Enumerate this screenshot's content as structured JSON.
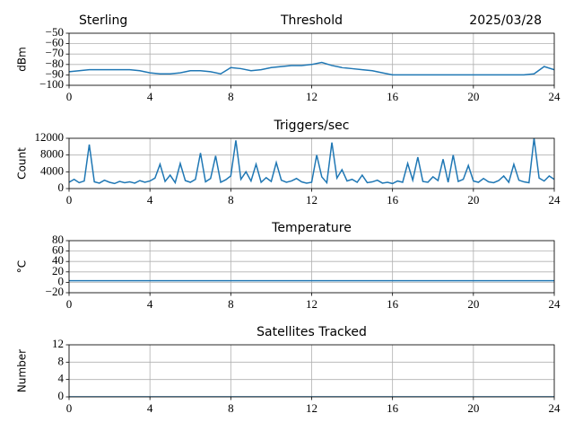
{
  "chart_data": [
    {
      "type": "line",
      "location": "Sterling",
      "title": "Threshold",
      "date": "2025/03/28",
      "ylabel": "dBm",
      "color": "#1f77b4",
      "grid": true,
      "xlim": [
        0,
        24
      ],
      "xticks": [
        0,
        4,
        8,
        12,
        16,
        20,
        24
      ],
      "ylim": [
        -100,
        -50
      ],
      "yticks": [
        {
          "value": -100,
          "label": "−100"
        },
        {
          "value": -90,
          "label": "−90"
        },
        {
          "value": -80,
          "label": "−80"
        },
        {
          "value": -70,
          "label": "−70"
        },
        {
          "value": -60,
          "label": "−60"
        },
        {
          "value": -50,
          "label": "−50"
        }
      ],
      "x": [
        0,
        0.5,
        1,
        1.5,
        2,
        2.5,
        3,
        3.5,
        4,
        4.5,
        5,
        5.5,
        6,
        6.5,
        7,
        7.5,
        8,
        8.5,
        9,
        9.5,
        10,
        10.5,
        11,
        11.5,
        12,
        12.5,
        13,
        13.5,
        14,
        14.5,
        15,
        15.5,
        16,
        16.5,
        17,
        17.5,
        18,
        18.5,
        19,
        19.5,
        20,
        20.5,
        21,
        21.5,
        22,
        22.5,
        23,
        23.5,
        24
      ],
      "values": [
        -87,
        -86,
        -85,
        -85,
        -85,
        -85,
        -85,
        -86,
        -88,
        -89,
        -89,
        -88,
        -86,
        -86,
        -87,
        -89,
        -83,
        -84,
        -86,
        -85,
        -83,
        -82,
        -81,
        -81,
        -80,
        -78,
        -81,
        -83,
        -84,
        -85,
        -86,
        -88,
        -90,
        -90,
        -90,
        -90,
        -90,
        -90,
        -90,
        -90,
        -90,
        -90,
        -90,
        -90,
        -90,
        -90,
        -89,
        -82,
        -85
      ]
    },
    {
      "type": "line",
      "title": "Triggers/sec",
      "ylabel": "Count",
      "color": "#1f77b4",
      "grid": true,
      "xlim": [
        0,
        24
      ],
      "xticks": [
        0,
        4,
        8,
        12,
        16,
        20,
        24
      ],
      "ylim": [
        0,
        12000
      ],
      "yticks": [
        0,
        4000,
        8000,
        12000
      ],
      "x": [
        0,
        0.25,
        0.5,
        0.75,
        1,
        1.25,
        1.5,
        1.75,
        2,
        2.25,
        2.5,
        2.75,
        3,
        3.25,
        3.5,
        3.75,
        4,
        4.25,
        4.5,
        4.75,
        5,
        5.25,
        5.5,
        5.75,
        6,
        6.25,
        6.5,
        6.75,
        7,
        7.25,
        7.5,
        7.75,
        8,
        8.25,
        8.5,
        8.75,
        9,
        9.25,
        9.5,
        9.75,
        10,
        10.25,
        10.5,
        10.75,
        11,
        11.25,
        11.5,
        11.75,
        12,
        12.25,
        12.5,
        12.75,
        13,
        13.25,
        13.5,
        13.75,
        14,
        14.25,
        14.5,
        14.75,
        15,
        15.25,
        15.5,
        15.75,
        16,
        16.25,
        16.5,
        16.75,
        17,
        17.25,
        17.5,
        17.75,
        18,
        18.25,
        18.5,
        18.75,
        19,
        19.25,
        19.5,
        19.75,
        20,
        20.25,
        20.5,
        20.75,
        21,
        21.25,
        21.5,
        21.75,
        22,
        22.25,
        22.5,
        22.75,
        23,
        23.25,
        23.5,
        23.75,
        24
      ],
      "values": [
        1500,
        2200,
        1400,
        1800,
        10500,
        1600,
        1300,
        2000,
        1500,
        1200,
        1700,
        1400,
        1600,
        1300,
        1900,
        1500,
        1800,
        2500,
        5800,
        1700,
        3200,
        1400,
        6000,
        1900,
        1500,
        2200,
        8500,
        1600,
        2400,
        7800,
        1500,
        2100,
        3000,
        11500,
        2200,
        4000,
        1800,
        5800,
        1500,
        2600,
        1700,
        6200,
        2000,
        1500,
        1800,
        2400,
        1600,
        1300,
        1500,
        8000,
        2800,
        1400,
        11000,
        2500,
        4500,
        1800,
        2200,
        1500,
        3200,
        1400,
        1600,
        2000,
        1300,
        1500,
        1200,
        1800,
        1500,
        6000,
        2000,
        7500,
        1700,
        1500,
        2800,
        1900,
        7000,
        1500,
        8000,
        1700,
        2200,
        5500,
        1800,
        1500,
        2400,
        1600,
        1400,
        1900,
        3000,
        1500,
        5800,
        2000,
        1600,
        1400,
        12000,
        2500,
        1800,
        3000,
        2200
      ]
    },
    {
      "type": "line",
      "title": "Temperature",
      "ylabel": "°C",
      "color": "#1f77b4",
      "grid": true,
      "xlim": [
        0,
        24
      ],
      "xticks": [
        0,
        4,
        8,
        12,
        16,
        20,
        24
      ],
      "ylim": [
        -20,
        80
      ],
      "yticks": [
        {
          "value": -20,
          "label": "−20"
        },
        0,
        20,
        40,
        60,
        80
      ],
      "x": [
        0,
        1,
        2,
        3,
        4,
        5,
        6,
        7,
        8,
        9,
        10,
        11,
        12,
        13,
        14,
        15,
        16,
        17,
        18,
        19,
        20,
        21,
        22,
        23,
        24
      ],
      "values": [
        3,
        3,
        3,
        3,
        3,
        3,
        3,
        3,
        3,
        3,
        3,
        3,
        3,
        3,
        3,
        3,
        3,
        3,
        3,
        3,
        3,
        3,
        3,
        3,
        3
      ]
    },
    {
      "type": "line",
      "title": "Satellites Tracked",
      "ylabel": "Number",
      "color": "#1f77b4",
      "grid": true,
      "xlim": [
        0,
        24
      ],
      "xticks": [
        0,
        4,
        8,
        12,
        16,
        20,
        24
      ],
      "ylim": [
        0,
        12
      ],
      "yticks": [
        0,
        4,
        8,
        12
      ],
      "x": [
        0,
        1,
        2,
        3,
        4,
        5,
        6,
        7,
        8,
        9,
        10,
        11,
        12,
        13,
        14,
        15,
        16,
        17,
        18,
        19,
        20,
        21,
        22,
        23,
        24
      ],
      "values": [
        0,
        0,
        0,
        0,
        0,
        0,
        0,
        0,
        0,
        0,
        0,
        0,
        0,
        0,
        0,
        0,
        0,
        0,
        0,
        0,
        0,
        0,
        0,
        0,
        0
      ]
    }
  ]
}
